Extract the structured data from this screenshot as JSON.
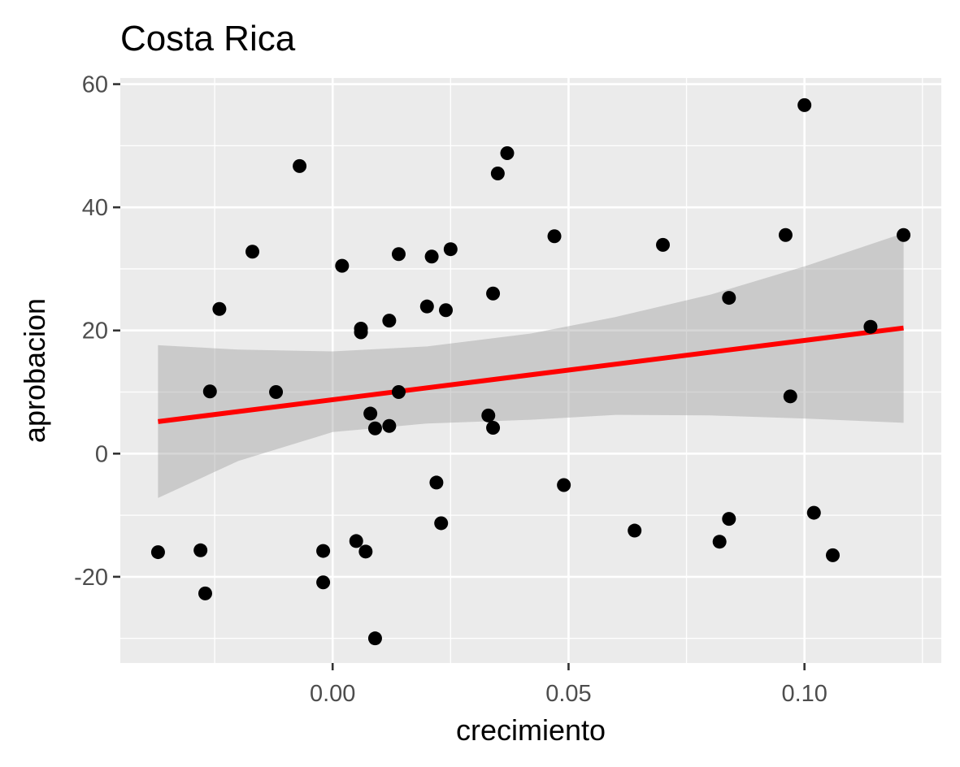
{
  "chart_data": {
    "type": "scatter",
    "title": "Costa Rica",
    "xlabel": "crecimiento",
    "ylabel": "aprobacion",
    "xlim": [
      -0.045,
      0.129
    ],
    "ylim": [
      -34,
      61
    ],
    "x_ticks": [
      0.0,
      0.05,
      0.1
    ],
    "x_tick_labels": [
      "0.00",
      "0.05",
      "0.10"
    ],
    "y_ticks": [
      -20,
      0,
      20,
      40,
      60
    ],
    "y_tick_labels": [
      "-20",
      "0",
      "20",
      "40",
      "60"
    ],
    "grid": true,
    "background": "#ebebeb",
    "colors": {
      "points": "#000000",
      "fit_line": "#ff0000",
      "confidence_band": "#999999"
    },
    "points": [
      {
        "x": -0.037,
        "y": -16.0
      },
      {
        "x": -0.028,
        "y": -15.7
      },
      {
        "x": -0.027,
        "y": -22.7
      },
      {
        "x": -0.026,
        "y": 10.1
      },
      {
        "x": -0.024,
        "y": 23.5
      },
      {
        "x": -0.017,
        "y": 32.8
      },
      {
        "x": -0.012,
        "y": 10.0
      },
      {
        "x": -0.007,
        "y": 46.7
      },
      {
        "x": -0.002,
        "y": -15.8
      },
      {
        "x": -0.002,
        "y": -20.9
      },
      {
        "x": 0.002,
        "y": 30.5
      },
      {
        "x": 0.005,
        "y": -14.2
      },
      {
        "x": 0.006,
        "y": 20.3
      },
      {
        "x": 0.006,
        "y": 19.7
      },
      {
        "x": 0.007,
        "y": -15.9
      },
      {
        "x": 0.008,
        "y": 6.5
      },
      {
        "x": 0.009,
        "y": 4.1
      },
      {
        "x": 0.009,
        "y": -30.0
      },
      {
        "x": 0.012,
        "y": 4.5
      },
      {
        "x": 0.012,
        "y": 21.6
      },
      {
        "x": 0.014,
        "y": 10.0
      },
      {
        "x": 0.014,
        "y": 32.4
      },
      {
        "x": 0.02,
        "y": 23.9
      },
      {
        "x": 0.021,
        "y": 32.0
      },
      {
        "x": 0.022,
        "y": -4.7
      },
      {
        "x": 0.023,
        "y": -11.3
      },
      {
        "x": 0.024,
        "y": 23.3
      },
      {
        "x": 0.025,
        "y": 33.2
      },
      {
        "x": 0.033,
        "y": 6.2
      },
      {
        "x": 0.034,
        "y": 26.0
      },
      {
        "x": 0.034,
        "y": 4.2
      },
      {
        "x": 0.035,
        "y": 45.5
      },
      {
        "x": 0.037,
        "y": 48.8
      },
      {
        "x": 0.047,
        "y": 35.3
      },
      {
        "x": 0.049,
        "y": -5.1
      },
      {
        "x": 0.064,
        "y": -12.5
      },
      {
        "x": 0.07,
        "y": 33.9
      },
      {
        "x": 0.082,
        "y": -14.3
      },
      {
        "x": 0.084,
        "y": -10.6
      },
      {
        "x": 0.084,
        "y": 25.3
      },
      {
        "x": 0.096,
        "y": 35.5
      },
      {
        "x": 0.097,
        "y": 9.3
      },
      {
        "x": 0.1,
        "y": 56.6
      },
      {
        "x": 0.102,
        "y": -9.6
      },
      {
        "x": 0.106,
        "y": -16.5
      },
      {
        "x": 0.114,
        "y": 20.6
      },
      {
        "x": 0.121,
        "y": 35.5
      }
    ],
    "fit_line": {
      "x": [
        -0.037,
        0.121
      ],
      "y": [
        5.2,
        20.4
      ]
    },
    "confidence_band": {
      "x": [
        -0.037,
        -0.02,
        0.0,
        0.02,
        0.042,
        0.06,
        0.08,
        0.1,
        0.121
      ],
      "upper": [
        17.6,
        16.9,
        16.6,
        17.4,
        19.5,
        22.2,
        25.8,
        30.4,
        35.8
      ],
      "lower": [
        -7.2,
        -1.2,
        3.5,
        4.9,
        5.5,
        6.3,
        6.2,
        5.7,
        5.0
      ]
    }
  }
}
